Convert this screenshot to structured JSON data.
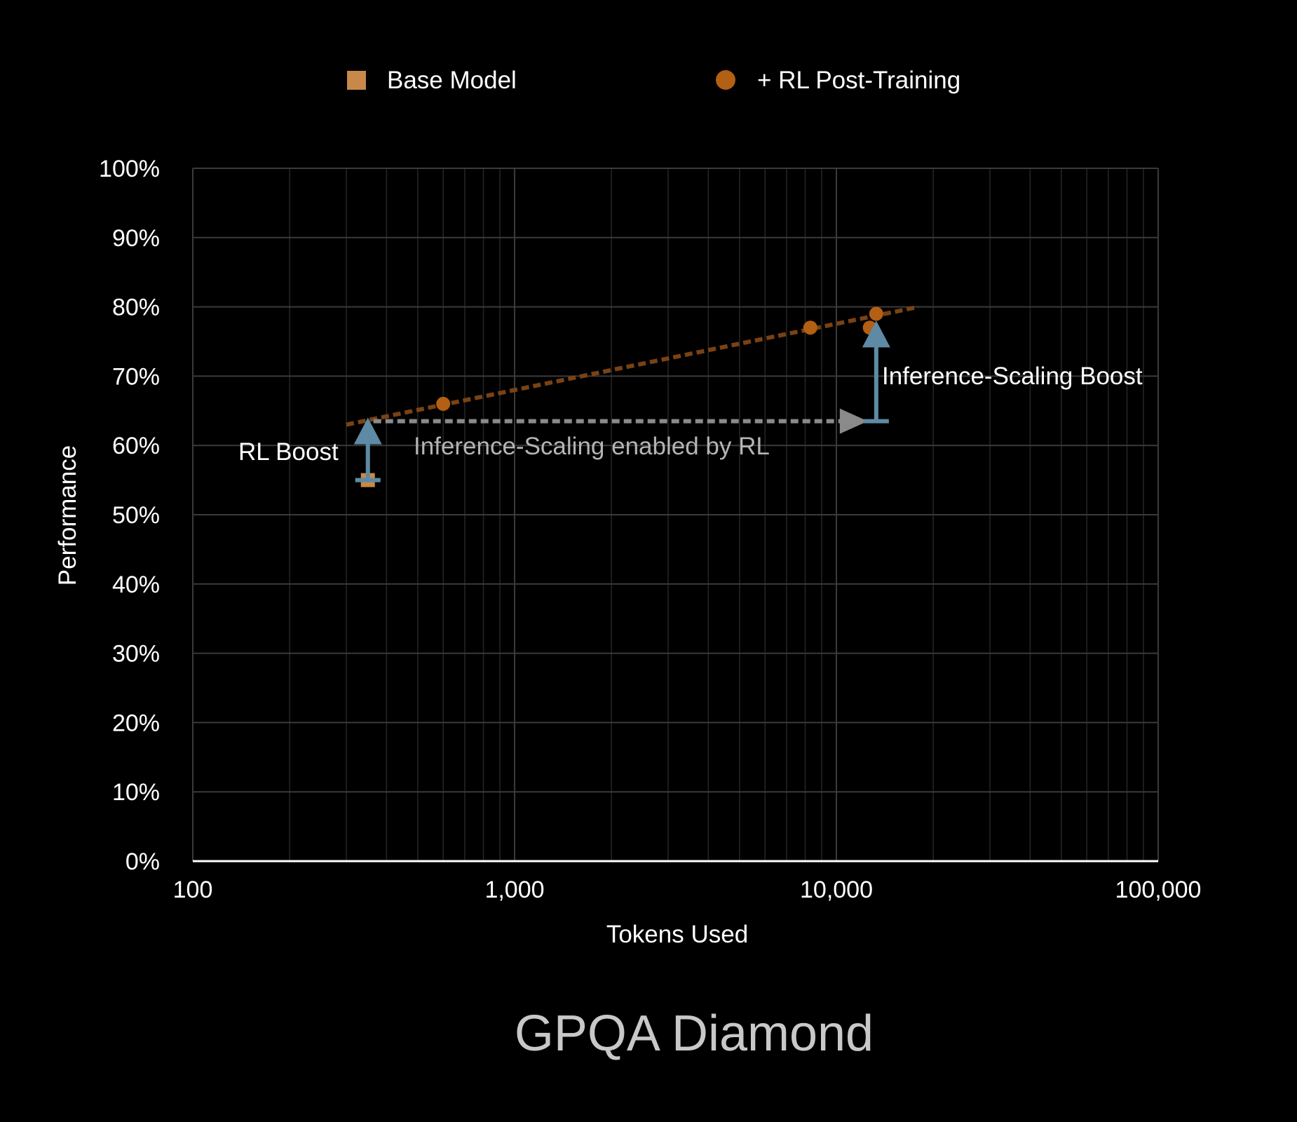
{
  "chart_data": {
    "type": "scatter",
    "title": "GPQA Diamond",
    "xlabel": "Tokens Used",
    "ylabel": "Performance",
    "xscale": "log",
    "xlim": [
      100,
      100000
    ],
    "ylim": [
      0,
      100
    ],
    "xticks": [
      "100",
      "1,000",
      "10,000",
      "100,000"
    ],
    "yticks": [
      "0%",
      "10%",
      "20%",
      "30%",
      "40%",
      "50%",
      "60%",
      "70%",
      "80%",
      "90%",
      "100%"
    ],
    "grid": true,
    "legend_position": "top",
    "series": [
      {
        "name": "Base Model",
        "marker": "square",
        "color": "#c8884a",
        "points": [
          {
            "x": 350,
            "y": 55
          }
        ]
      },
      {
        "name": "+ RL Post-Training",
        "marker": "circle",
        "color": "#b35f14",
        "points": [
          {
            "x": 600,
            "y": 66
          },
          {
            "x": 8300,
            "y": 77
          },
          {
            "x": 12700,
            "y": 77
          },
          {
            "x": 13300,
            "y": 79
          }
        ]
      }
    ],
    "trendline": {
      "color": "#7a4214",
      "from": {
        "x": 300,
        "y": 63
      },
      "to": {
        "x": 18000,
        "y": 80
      }
    },
    "annotations": {
      "rl_boost": {
        "text": "RL Boost",
        "x": 350,
        "from_y": 55,
        "to_y": 64
      },
      "inference_scaling_enabled": {
        "text": "Inference-Scaling enabled by RL",
        "from_x": 350,
        "to_x": 13300,
        "y": 63.5
      },
      "inference_scaling_boost": {
        "text": "Inference-Scaling Boost",
        "x": 13300,
        "from_y": 63.5,
        "to_y": 78
      }
    },
    "colors": {
      "grid": "#3a3a3a",
      "arrow_blue": "#5e8aa5",
      "arrow_gray": "#8a8a8a",
      "title_gray": "#c8c8c8",
      "axis": "#ffffff"
    }
  }
}
